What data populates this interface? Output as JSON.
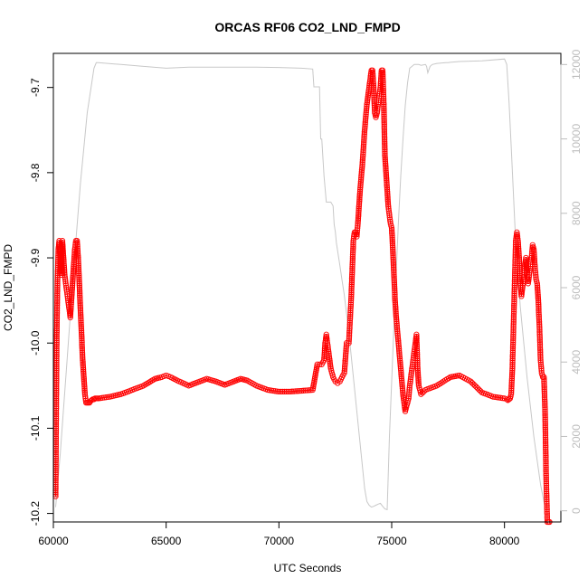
{
  "chart_data": {
    "type": "scatter",
    "title": "ORCAS RF06 CO2_LND_FMPD",
    "xlabel": "UTC Seconds",
    "ylabel": "CO2_LND_FMPD",
    "xlim": [
      60000,
      82500
    ],
    "ylim": [
      -10.21,
      -9.66
    ],
    "y2lim": [
      -300,
      12300
    ],
    "x_ticks": [
      60000,
      65000,
      70000,
      75000,
      80000
    ],
    "x_tick_labels": [
      "60000",
      "65000",
      "70000",
      "75000",
      "80000"
    ],
    "y_ticks": [
      -10.2,
      -10.1,
      -10.0,
      -9.9,
      -9.8,
      -9.7
    ],
    "y_tick_labels": [
      "-10.2",
      "-10.1",
      "-10.0",
      "-9.9",
      "-9.8",
      "-9.7"
    ],
    "y2_ticks": [
      0,
      2000,
      4000,
      6000,
      8000,
      10000,
      12000
    ],
    "y2_tick_labels": [
      "0",
      "2000",
      "4000",
      "6000",
      "8000",
      "10000",
      "12000"
    ],
    "grid": false,
    "colors": {
      "primary": "#ff0000",
      "secondary": "#c8c8c8",
      "right_axis": "#bdbdbd"
    },
    "series": [
      {
        "axis": "left",
        "style": "points-line",
        "x": [
          60100,
          60120,
          60150,
          60180,
          60220,
          60260,
          60300,
          60350,
          60400,
          60450,
          60500,
          60550,
          60600,
          60650,
          60700,
          60750,
          60800,
          60850,
          60900,
          60950,
          61000,
          61050,
          61100,
          61150,
          61200,
          61250,
          61300,
          61350,
          61400,
          61450,
          61500,
          61550,
          61600,
          61650,
          61700,
          61750,
          61800,
          61850,
          61900,
          61950,
          62000,
          62500,
          63000,
          63500,
          64000,
          64500,
          64800,
          65000,
          65200,
          65500,
          66000,
          66400,
          66800,
          67200,
          67600,
          68000,
          68300,
          68600,
          69000,
          69500,
          70000,
          70500,
          71000,
          71500,
          71600,
          71700,
          71800,
          71900,
          72000,
          72050,
          72100,
          72150,
          72200,
          72300,
          72400,
          72500,
          72600,
          72700,
          72800,
          72900,
          73000,
          73100,
          73200,
          73300,
          73350,
          73400,
          73450,
          73500,
          73550,
          73600,
          73700,
          73800,
          73900,
          74000,
          74100,
          74150,
          74200,
          74250,
          74300,
          74350,
          74400,
          74450,
          74500,
          74550,
          74600,
          74650,
          74700,
          74750,
          74800,
          74850,
          74900,
          74950,
          75000,
          75050,
          75100,
          75150,
          75200,
          75300,
          75400,
          75500,
          75600,
          75650,
          75700,
          75750,
          75800,
          75850,
          75900,
          75950,
          76000,
          76050,
          76100,
          76150,
          76200,
          76300,
          76500,
          77000,
          77300,
          77600,
          78000,
          78500,
          79000,
          79500,
          80000,
          80100,
          80150,
          80200,
          80250,
          80300,
          80350,
          80400,
          80450,
          80500,
          80550,
          80600,
          80650,
          80700,
          80750,
          80800,
          80850,
          80900,
          80950,
          81000,
          81050,
          81100,
          81150,
          81200,
          81250,
          81300,
          81350,
          81400,
          81450,
          81500,
          81550,
          81600,
          81650,
          81700,
          81750,
          81800,
          81850,
          81900,
          81950,
          82000
        ],
        "y": [
          -10.18,
          -10.1,
          -9.99,
          -9.93,
          -9.89,
          -9.88,
          -9.9,
          -9.92,
          -9.88,
          -9.9,
          -9.92,
          -9.93,
          -9.94,
          -9.95,
          -9.96,
          -9.97,
          -9.95,
          -9.93,
          -9.91,
          -9.89,
          -9.88,
          -9.88,
          -9.9,
          -9.93,
          -9.96,
          -9.99,
          -10.02,
          -10.04,
          -10.06,
          -10.07,
          -10.07,
          -10.07,
          -10.07,
          -10.068,
          -10.067,
          -10.066,
          -10.066,
          -10.065,
          -10.065,
          -10.065,
          -10.065,
          -10.063,
          -10.06,
          -10.055,
          -10.05,
          -10.042,
          -10.04,
          -10.038,
          -10.04,
          -10.044,
          -10.05,
          -10.046,
          -10.042,
          -10.045,
          -10.049,
          -10.045,
          -10.042,
          -10.044,
          -10.05,
          -10.055,
          -10.057,
          -10.057,
          -10.056,
          -10.055,
          -10.04,
          -10.025,
          -10.025,
          -10.025,
          -10.02,
          -10.0,
          -9.99,
          -10.0,
          -10.01,
          -10.03,
          -10.04,
          -10.045,
          -10.047,
          -10.045,
          -10.04,
          -10.035,
          -10.0,
          -10.0,
          -9.95,
          -9.88,
          -9.87,
          -9.87,
          -9.875,
          -9.86,
          -9.84,
          -9.82,
          -9.79,
          -9.75,
          -9.72,
          -9.7,
          -9.68,
          -9.68,
          -9.7,
          -9.73,
          -9.735,
          -9.73,
          -9.72,
          -9.71,
          -9.7,
          -9.68,
          -9.68,
          -9.72,
          -9.78,
          -9.8,
          -9.82,
          -9.84,
          -9.85,
          -9.86,
          -9.865,
          -9.89,
          -9.92,
          -9.95,
          -9.97,
          -10.0,
          -10.03,
          -10.06,
          -10.08,
          -10.075,
          -10.07,
          -10.065,
          -10.05,
          -10.04,
          -10.03,
          -10.02,
          -10.01,
          -10.0,
          -9.99,
          -10.03,
          -10.05,
          -10.06,
          -10.055,
          -10.05,
          -10.045,
          -10.04,
          -10.038,
          -10.045,
          -10.058,
          -10.063,
          -10.065,
          -10.066,
          -10.067,
          -10.066,
          -10.065,
          -10.06,
          -10.03,
          -9.98,
          -9.93,
          -9.88,
          -9.87,
          -9.88,
          -9.9,
          -9.93,
          -9.945,
          -9.935,
          -9.925,
          -9.91,
          -9.9,
          -9.92,
          -9.93,
          -9.92,
          -9.91,
          -9.9,
          -9.885,
          -9.89,
          -9.91,
          -9.925,
          -9.93,
          -9.95,
          -9.98,
          -10.02,
          -10.035,
          -10.04,
          -10.04,
          -10.08,
          -10.16,
          -10.21,
          -10.21,
          -10.21
        ]
      },
      {
        "axis": "right",
        "style": "line",
        "x": [
          60100,
          60300,
          60600,
          60900,
          61200,
          61500,
          61800,
          61900,
          62000,
          63000,
          64000,
          65000,
          66000,
          67000,
          68000,
          69000,
          70000,
          71000,
          71500,
          71550,
          71600,
          71800,
          71850,
          71900,
          72000,
          72100,
          72200,
          72300,
          72400,
          72450,
          72500,
          72550,
          72700,
          72800,
          72900,
          73000,
          73100,
          73200,
          73300,
          73400,
          73500,
          73600,
          73700,
          73800,
          73900,
          74000,
          74100,
          74200,
          74300,
          74400,
          74500,
          74600,
          74700,
          74800,
          74900,
          75000,
          75100,
          75200,
          75300,
          75400,
          75500,
          75600,
          75700,
          75800,
          75900,
          76000,
          76100,
          76200,
          76300,
          76500,
          76550,
          76600,
          76700,
          76800,
          77000,
          77400,
          77500,
          77600,
          78000,
          79000,
          80000,
          80100,
          80200,
          80300,
          80400,
          80500,
          80700,
          81000,
          81300,
          81600,
          81800
        ],
        "y": [
          100,
          1500,
          4000,
          6500,
          8800,
          10700,
          11900,
          12050,
          12050,
          12000,
          11950,
          11900,
          11930,
          11930,
          11930,
          11930,
          11920,
          11900,
          11880,
          11400,
          11400,
          11400,
          10000,
          10000,
          9000,
          8300,
          8300,
          8300,
          8200,
          7700,
          7500,
          7200,
          6600,
          6200,
          5800,
          5300,
          4800,
          4200,
          3600,
          3000,
          2400,
          1800,
          1200,
          600,
          250,
          150,
          100,
          120,
          150,
          180,
          200,
          120,
          50,
          30,
          2000,
          3500,
          5000,
          6400,
          7800,
          9000,
          10000,
          10900,
          11500,
          11900,
          11950,
          12000,
          12000,
          12000,
          11980,
          12000,
          11950,
          11780,
          11950,
          12000,
          12030,
          12050,
          12050,
          12060,
          12080,
          12100,
          12150,
          12000,
          11000,
          9800,
          8500,
          7200,
          5500,
          3600,
          2000,
          700,
          100
        ]
      }
    ]
  }
}
